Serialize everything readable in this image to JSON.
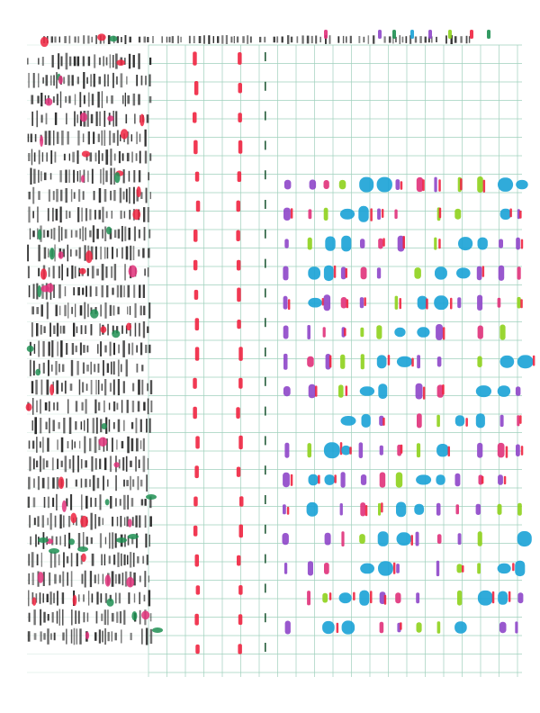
{
  "artwork": {
    "palette": {
      "paper": "#ffffff",
      "grid": "#9fd0bd",
      "grid_faint": "#cfe7dc",
      "ink": "#2a2a2a",
      "red": "#ef2340",
      "green": "#1e8f52",
      "purple": "#8e46c9",
      "blue": "#1aa2d6",
      "lime": "#8ed11c",
      "pink": "#e0317a",
      "dark_green": "#245c3a"
    },
    "note": ""
  }
}
